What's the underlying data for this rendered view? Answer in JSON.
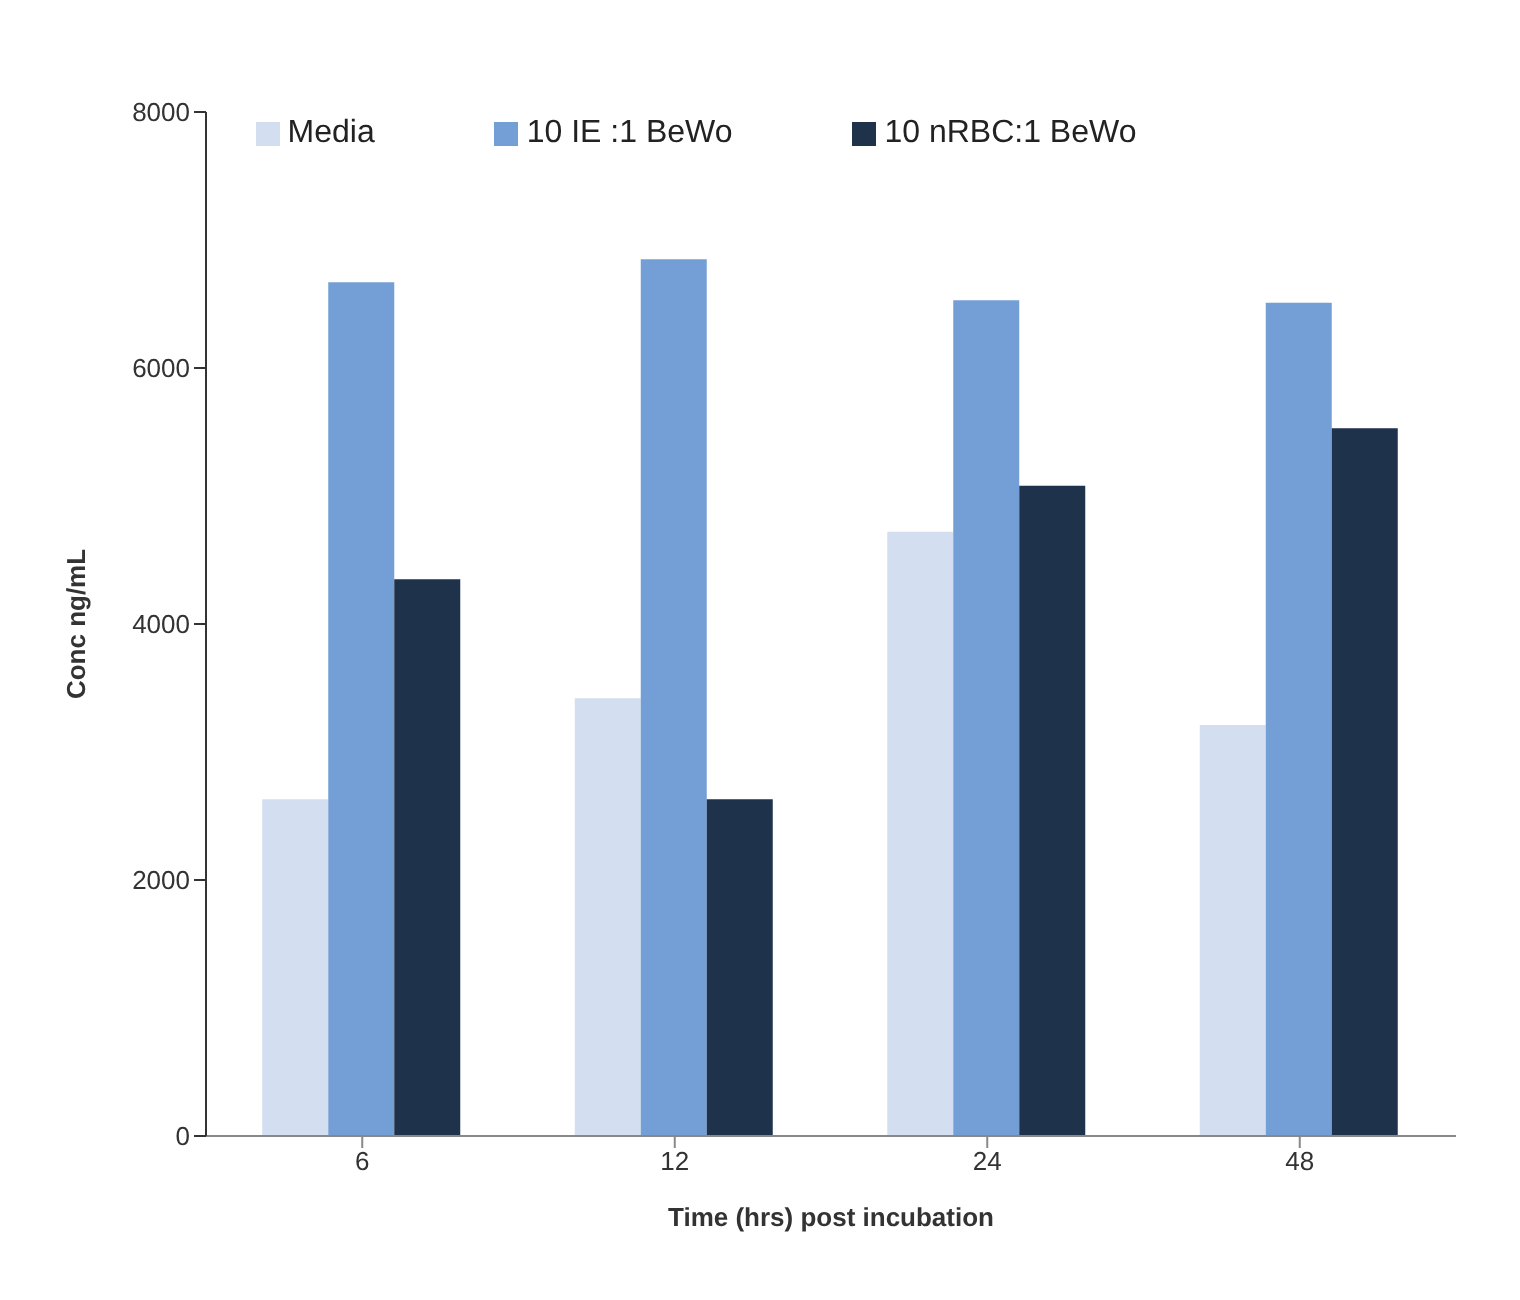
{
  "chart_data": {
    "type": "bar",
    "xlabel": "Time (hrs) post incubation",
    "ylabel": "Conc ng/mL",
    "categories": [
      "6",
      "12",
      "24",
      "48"
    ],
    "series": [
      {
        "name": "Media",
        "color": "#d3dff0",
        "values": [
          2630,
          3420,
          4720,
          3210
        ]
      },
      {
        "name": "10 IE :1 BeWo",
        "color": "#739fd6",
        "values": [
          6670,
          6850,
          6530,
          6510
        ]
      },
      {
        "name": "10 nRBC:1 BeWo",
        "color": "#1e324c",
        "values": [
          4350,
          2630,
          5080,
          5530
        ]
      }
    ],
    "ylim": [
      0,
      8000
    ],
    "yticks": [
      0,
      2000,
      4000,
      6000,
      8000
    ],
    "grid": false,
    "legend": "top"
  }
}
